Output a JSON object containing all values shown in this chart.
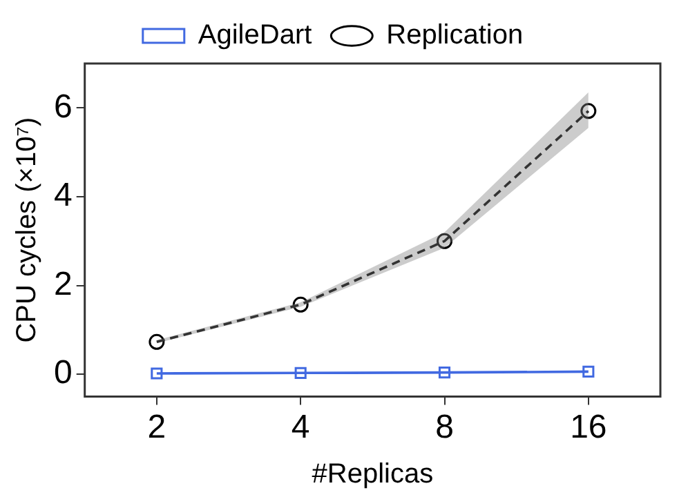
{
  "chart_data": {
    "type": "line",
    "xlabel": "#Replicas",
    "ylabel": "CPU cycles (×10⁷)",
    "categories": [
      "2",
      "4",
      "8",
      "16"
    ],
    "series": [
      {
        "name": "AgileDart",
        "color": "#4169e1",
        "values": [
          0.02,
          0.03,
          0.04,
          0.06
        ],
        "marker": "square",
        "line_style": "solid"
      },
      {
        "name": "Replication",
        "color": "#000000",
        "values": [
          0.73,
          1.57,
          3.0,
          5.93
        ],
        "lower": [
          0.7,
          1.52,
          2.85,
          5.55
        ],
        "upper": [
          0.77,
          1.62,
          3.2,
          6.35
        ],
        "marker": "circle",
        "line_style": "dashed"
      }
    ],
    "ylim": [
      -0.5,
      7
    ],
    "yticks": [
      0,
      2,
      4,
      6
    ],
    "grid": false,
    "legend": "top"
  }
}
